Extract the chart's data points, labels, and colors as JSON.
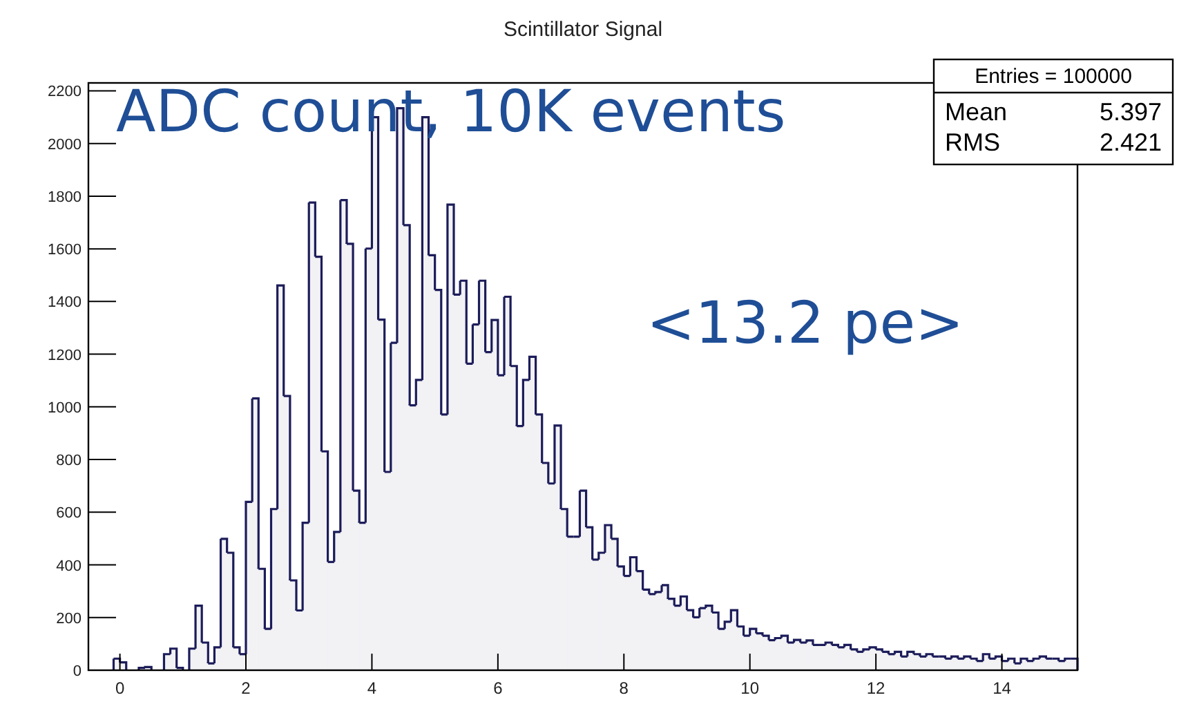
{
  "chart_data": {
    "type": "histogram",
    "title": "Scintillator Signal",
    "bins": [
      -0.5,
      -0.4,
      -0.3,
      -0.2,
      -0.1,
      0,
      0.1,
      0.2,
      0.3,
      0.4,
      0.5,
      0.6,
      0.7,
      0.8,
      0.9,
      1,
      1.1,
      1.2,
      1.3,
      1.4,
      1.5,
      1.6,
      1.7,
      1.8,
      1.9,
      2,
      2.1,
      2.2,
      2.3,
      2.4,
      2.5,
      2.6,
      2.7,
      2.8,
      2.9,
      3,
      3.1,
      3.2,
      3.3,
      3.4,
      3.5,
      3.6,
      3.7,
      3.8,
      3.9,
      4,
      4.1,
      4.2,
      4.3,
      4.4,
      4.5,
      4.6,
      4.7,
      4.8,
      4.9,
      5,
      5.1,
      5.2,
      5.3,
      5.4,
      5.5,
      5.6,
      5.7,
      5.8,
      5.9,
      6,
      6.1,
      6.2,
      6.3,
      6.4,
      6.5,
      6.6,
      6.7,
      6.8,
      6.9,
      7,
      7.1,
      7.2,
      7.3,
      7.4,
      7.5,
      7.6,
      7.7,
      7.8,
      7.9,
      8,
      8.1,
      8.2,
      8.3,
      8.4,
      8.5,
      8.6,
      8.7,
      8.8,
      8.9,
      9,
      9.1,
      9.2,
      9.3,
      9.4,
      9.5,
      9.6,
      9.7,
      9.8,
      9.9,
      10,
      10.1,
      10.2,
      10.3,
      10.4,
      10.5,
      10.6,
      10.7,
      10.8,
      10.9,
      11,
      11.1,
      11.2,
      11.3,
      11.4,
      11.5,
      11.6,
      11.7,
      11.8,
      11.9,
      12,
      12.1,
      12.2,
      12.3,
      12.4,
      12.5,
      12.6,
      12.7,
      12.8,
      12.9,
      13,
      13.1,
      13.2,
      13.3,
      13.4,
      13.5,
      13.6,
      13.7,
      13.8,
      13.9,
      14,
      14.1,
      14.2,
      14.3,
      14.4,
      14.5,
      14.6,
      14.7,
      14.8,
      14.9,
      15,
      15.1,
      15.2
    ],
    "values": [
      0,
      0,
      0,
      0,
      44,
      30,
      0,
      0,
      9,
      12,
      0,
      0,
      61,
      82,
      9,
      0,
      82,
      245,
      105,
      26,
      87,
      499,
      446,
      87,
      61,
      639,
      1032,
      385,
      157,
      612,
      1461,
      1041,
      341,
      227,
      560,
      1776,
      1570,
      831,
      411,
      525,
      1785,
      1619,
      682,
      560,
      1601,
      2100,
      1331,
      753,
      1243,
      2134,
      1690,
      1006,
      1102,
      2100,
      1576,
      1444,
      971,
      1768,
      1426,
      1479,
      1164,
      1313,
      1479,
      1208,
      1330,
      1120,
      1418,
      1155,
      927,
      1102,
      1190,
      971,
      787,
      709,
      929,
      612,
      507,
      507,
      682,
      543,
      420,
      446,
      551,
      499,
      394,
      358,
      429,
      376,
      306,
      289,
      297,
      323,
      271,
      245,
      280,
      228,
      201,
      236,
      245,
      219,
      157,
      184,
      228,
      166,
      131,
      157,
      140,
      131,
      114,
      122,
      131,
      105,
      115,
      105,
      113,
      96,
      96,
      105,
      96,
      87,
      96,
      79,
      70,
      79,
      87,
      79,
      70,
      61,
      70,
      52,
      70,
      61,
      52,
      61,
      52,
      52,
      44,
      52,
      44,
      52,
      44,
      35,
      61,
      44,
      52,
      35,
      44,
      26,
      44,
      35,
      44,
      52,
      44,
      44,
      35,
      44,
      44
    ],
    "color": "#1c1c5a",
    "xlim": [
      -0.5,
      15.2
    ],
    "xticks": [
      0,
      2,
      4,
      6,
      8,
      10,
      12,
      14
    ],
    "ylim": [
      0,
      2230
    ],
    "yticks": [
      0,
      200,
      400,
      600,
      800,
      1000,
      1200,
      1400,
      1600,
      1800,
      2000,
      2200
    ],
    "grid": false,
    "annotations": [
      "ADC count, 10K events",
      "<13.2 pe>",
      "Entries = 100000",
      "Mean 5.397",
      "RMS 2.421"
    ]
  }
}
